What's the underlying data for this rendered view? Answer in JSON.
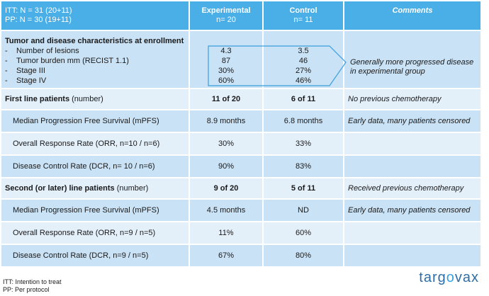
{
  "header": {
    "itt_line": "ITT: N = 31 (20+11)",
    "pp_line": "PP: N = 30 (19+11)",
    "exp_title": "Experimental",
    "exp_n": "n= 20",
    "ctrl_title": "Control",
    "ctrl_n": "n= 11",
    "comments": "Comments"
  },
  "enrollment": {
    "title": "Tumor and disease characteristics at enrollment",
    "items": [
      {
        "dash": "-",
        "label": "Number of lesions",
        "exp": "4.3",
        "ctrl": "3.5"
      },
      {
        "dash": "-",
        "label": "Tumor burden mm (RECIST 1.1)",
        "exp": "87",
        "ctrl": "46"
      },
      {
        "dash": "-",
        "label": "Stage III",
        "exp": "30%",
        "ctrl": "27%"
      },
      {
        "dash": "-",
        "label": "Stage IV",
        "exp": "60%",
        "ctrl": "46%"
      }
    ],
    "comment_l1": "Generally more progressed disease",
    "comment_l2": "in experimental group"
  },
  "first_line": {
    "label": "First line patients",
    "label_suffix": "(number)",
    "exp": "11 of 20",
    "ctrl": "6 of 11",
    "comment": "No previous chemotherapy",
    "rows": [
      {
        "label": "Median Progression Free Survival (mPFS)",
        "exp": "8.9 months",
        "ctrl": "6.8 months",
        "comment": "Early data, many patients censored"
      },
      {
        "label": "Overall Response Rate (ORR, n=10 / n=6)",
        "exp": "30%",
        "ctrl": "33%",
        "comment": ""
      },
      {
        "label": "Disease Control Rate (DCR, n= 10 / n=6)",
        "exp": "90%",
        "ctrl": "83%",
        "comment": ""
      }
    ]
  },
  "second_line": {
    "label": "Second (or later) line patients",
    "label_suffix": "(number)",
    "exp": "9 of 20",
    "ctrl": "5 of 11",
    "comment": "Received previous chemotherapy",
    "rows": [
      {
        "label": "Median Progression Free Survival (mPFS)",
        "exp": "4.5 months",
        "ctrl": "ND",
        "comment": "Early data, many patients censored"
      },
      {
        "label": "Overall Response Rate (ORR, n=9 / n=5)",
        "exp": "11%",
        "ctrl": "60%",
        "comment": ""
      },
      {
        "label": "Disease Control Rate (DCR, n=9 / n=5)",
        "exp": "67%",
        "ctrl": "80%",
        "comment": ""
      }
    ]
  },
  "footer": {
    "itt": "ITT: Intention to treat",
    "pp": "PP: Per protocol"
  },
  "logo": {
    "prefix": "targ",
    "o1": "o",
    "mid": "vax"
  },
  "colors": {
    "header_blue": "#4aaee7",
    "row_dark": "#c9e2f5",
    "row_light": "#e3f0fa",
    "arrow_stroke": "#3aa0de"
  }
}
